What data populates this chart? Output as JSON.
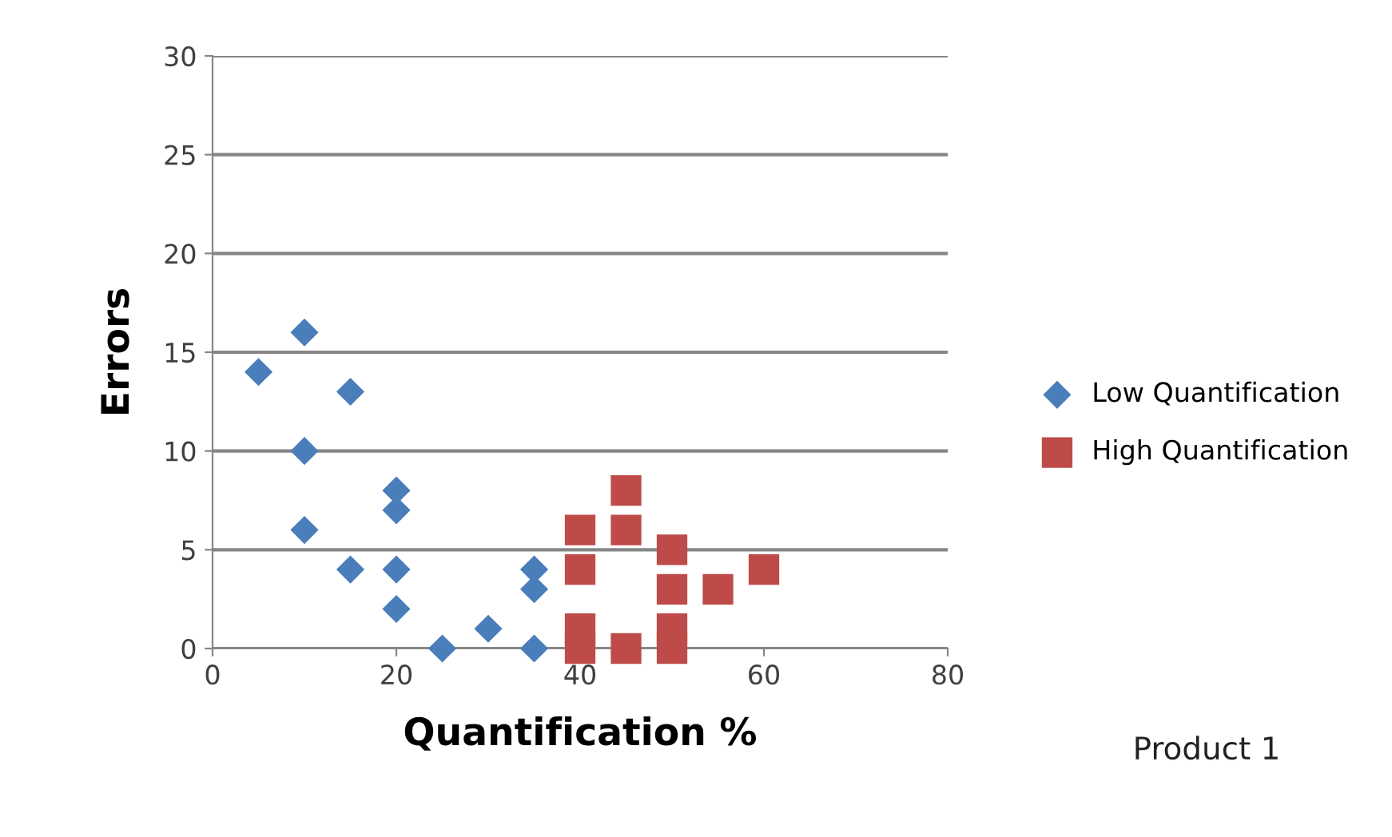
{
  "chart_data": {
    "type": "scatter",
    "xlabel": "Quantification %",
    "ylabel": "Errors",
    "xlim": [
      0,
      80
    ],
    "xticks": [
      0,
      20,
      40,
      60,
      80
    ],
    "ylim": [
      0,
      30
    ],
    "yticks": [
      0,
      5,
      10,
      15,
      20,
      25,
      30
    ],
    "grid": "y",
    "legend": "right",
    "annotations": [
      "Product 1"
    ],
    "series": [
      {
        "name": "Low Quantification",
        "color": "#4a7ebb",
        "marker": "diamond",
        "x": [
          5,
          10,
          10,
          10,
          15,
          15,
          20,
          20,
          20,
          20,
          25,
          30,
          35,
          35,
          35
        ],
        "values": [
          14,
          16,
          10,
          6,
          13,
          4,
          8,
          7,
          4,
          2,
          0,
          1,
          4,
          3,
          0
        ]
      },
      {
        "name": "High Quantification",
        "color": "#be4b48",
        "marker": "square",
        "x": [
          40,
          40,
          40,
          40,
          45,
          45,
          45,
          50,
          50,
          50,
          50,
          55,
          60
        ],
        "values": [
          6,
          4,
          1,
          0,
          8,
          6,
          0,
          5,
          3,
          1,
          0,
          3,
          4
        ]
      }
    ]
  }
}
